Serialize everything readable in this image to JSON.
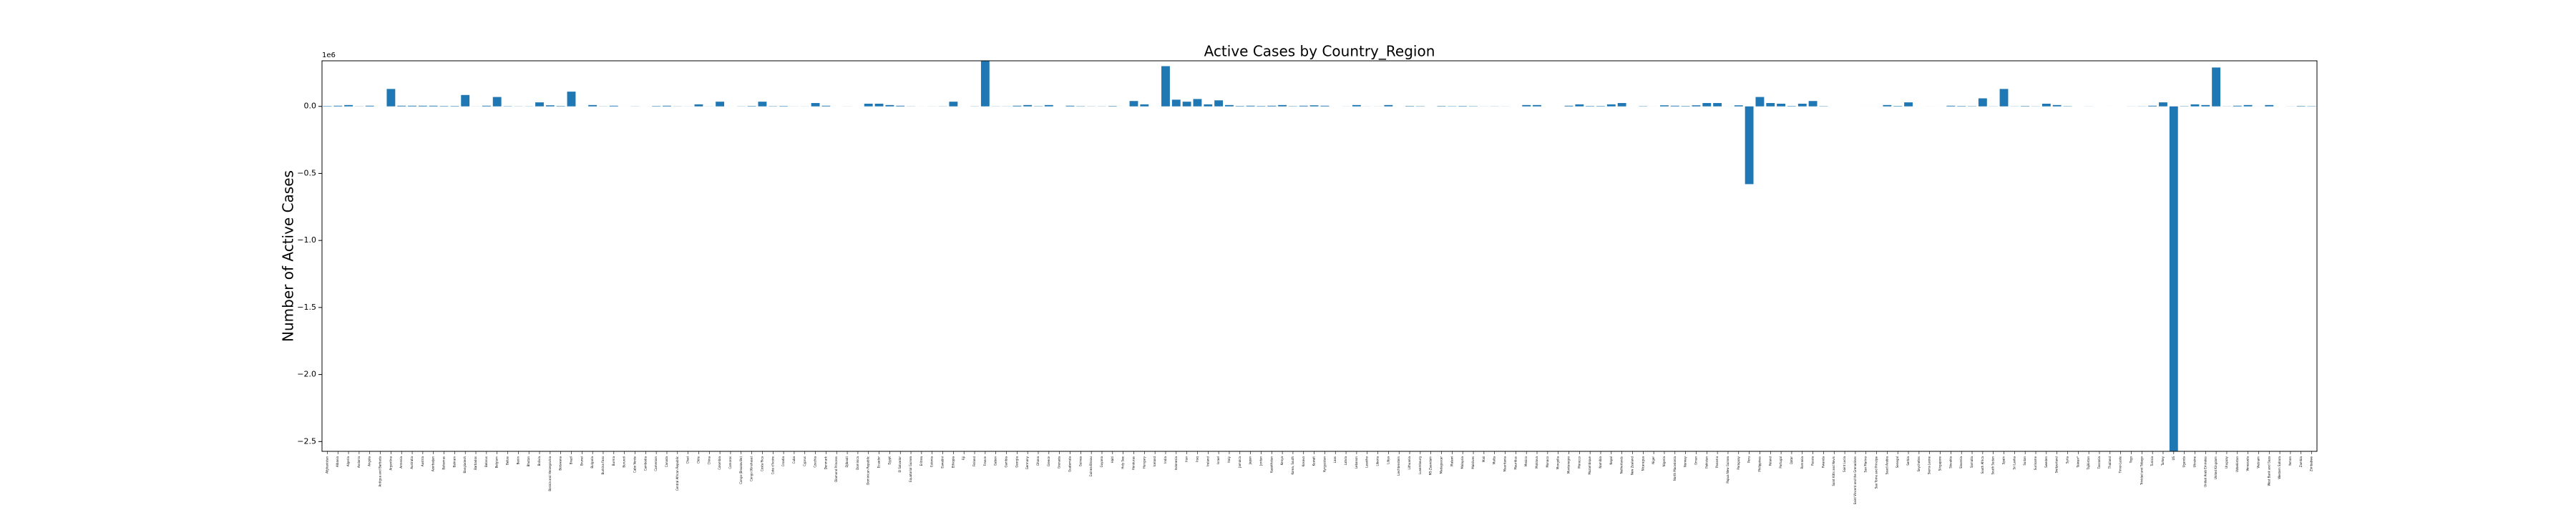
{
  "chart_data": {
    "type": "bar",
    "title": "Active Cases by Country_Region",
    "ylabel": "Number of Active Cases",
    "y_offset_label": "1e6",
    "color": "#1f77b4",
    "grid": false,
    "ylim": [
      -2573000,
      340000
    ],
    "yticks": [
      {
        "value": -2500000,
        "label": "−2.5"
      },
      {
        "value": -2000000,
        "label": "−2.0"
      },
      {
        "value": -1500000,
        "label": "−1.5"
      },
      {
        "value": -1000000,
        "label": "−1.0"
      },
      {
        "value": -500000,
        "label": "−0.5"
      },
      {
        "value": 0,
        "label": "0.0"
      }
    ],
    "categories": [
      "Afghanistan",
      "Albania",
      "Algeria",
      "Andorra",
      "Angola",
      "Antigua and Barbuda",
      "Argentina",
      "Armenia",
      "Australia",
      "Austria",
      "Azerbaijan",
      "Bahamas",
      "Bahrain",
      "Bangladesh",
      "Barbados",
      "Belarus",
      "Belgium",
      "Belize",
      "Benin",
      "Bhutan",
      "Bolivia",
      "Bosnia and Herzegovina",
      "Botswana",
      "Brazil",
      "Brunei",
      "Bulgaria",
      "Burkina Faso",
      "Burma",
      "Burundi",
      "Cabo Verde",
      "Cambodia",
      "Cameroon",
      "Canada",
      "Central African Republic",
      "Chad",
      "Chile",
      "China",
      "Colombia",
      "Comoros",
      "Congo (Brazzaville)",
      "Congo (Kinshasa)",
      "Costa Rica",
      "Cote d'Ivoire",
      "Croatia",
      "Cuba",
      "Cyprus",
      "Czechia",
      "Denmark",
      "Diamond Princess",
      "Djibouti",
      "Dominica",
      "Dominican Republic",
      "Ecuador",
      "Egypt",
      "El Salvador",
      "Equatorial Guinea",
      "Eritrea",
      "Estonia",
      "Eswatini",
      "Ethiopia",
      "Fiji",
      "Finland",
      "France",
      "Gabon",
      "Gambia",
      "Georgia",
      "Germany",
      "Ghana",
      "Greece",
      "Grenada",
      "Guatemala",
      "Guinea",
      "Guinea-Bissau",
      "Guyana",
      "Haiti",
      "Holy See",
      "Honduras",
      "Hungary",
      "Iceland",
      "India",
      "Indonesia",
      "Iran",
      "Iraq",
      "Ireland",
      "Israel",
      "Italy",
      "Jamaica",
      "Japan",
      "Jordan",
      "Kazakhstan",
      "Kenya",
      "Korea, South",
      "Kosovo",
      "Kuwait",
      "Kyrgyzstan",
      "Laos",
      "Latvia",
      "Lebanon",
      "Lesotho",
      "Liberia",
      "Libya",
      "Liechtenstein",
      "Lithuania",
      "Luxembourg",
      "MS Zaandam",
      "Madagascar",
      "Malawi",
      "Malaysia",
      "Maldives",
      "Mali",
      "Malta",
      "Mauritania",
      "Mauritius",
      "Mexico",
      "Moldova",
      "Monaco",
      "Mongolia",
      "Montenegro",
      "Morocco",
      "Mozambique",
      "Namibia",
      "Nepal",
      "Netherlands",
      "New Zealand",
      "Nicaragua",
      "Niger",
      "Nigeria",
      "North Macedonia",
      "Norway",
      "Oman",
      "Pakistan",
      "Panama",
      "Papua New Guinea",
      "Paraguay",
      "Peru",
      "Philippines",
      "Poland",
      "Portugal",
      "Qatar",
      "Romania",
      "Russia",
      "Rwanda",
      "Saint Kitts and Nevis",
      "Saint Lucia",
      "Saint Vincent and the Grenadines",
      "San Marino",
      "Sao Tome and Principe",
      "Saudi Arabia",
      "Senegal",
      "Serbia",
      "Seychelles",
      "Sierra Leone",
      "Singapore",
      "Slovakia",
      "Slovenia",
      "Somalia",
      "South Africa",
      "South Sudan",
      "Spain",
      "Sri Lanka",
      "Sudan",
      "Suriname",
      "Sweden",
      "Switzerland",
      "Syria",
      "Taiwan*",
      "Tajikistan",
      "Tanzania",
      "Thailand",
      "Timor-Leste",
      "Togo",
      "Trinidad and Tobago",
      "Tunisia",
      "Turkey",
      "US",
      "Uganda",
      "Ukraine",
      "United Arab Emirates",
      "United Kingdom",
      "Uruguay",
      "Uzbekistan",
      "Venezuela",
      "Vietnam",
      "West Bank and Gaza",
      "Western Sahara",
      "Yemen",
      "Zambia",
      "Zimbabwe"
    ],
    "values": [
      3000,
      5000,
      10000,
      1000,
      5000,
      100,
      130000,
      5000,
      5000,
      5000,
      5000,
      3000,
      3000,
      85000,
      500,
      5000,
      70000,
      2000,
      1000,
      1000,
      30000,
      8000,
      3000,
      110000,
      100,
      10000,
      1000,
      5000,
      100,
      1000,
      100,
      3000,
      5000,
      1000,
      500,
      15000,
      500,
      35000,
      100,
      1000,
      3000,
      35000,
      2000,
      3000,
      500,
      500,
      25000,
      5000,
      0,
      500,
      0,
      20000,
      20000,
      10000,
      5000,
      1000,
      200,
      500,
      1000,
      35000,
      0,
      1000,
      400000,
      1000,
      1000,
      5000,
      10000,
      2000,
      10000,
      0,
      5000,
      2000,
      1000,
      1000,
      3000,
      0,
      40000,
      15000,
      100,
      300000,
      50000,
      35000,
      55000,
      15000,
      45000,
      10000,
      3000,
      5000,
      3000,
      5000,
      10000,
      2000,
      5000,
      8000,
      5000,
      0,
      500,
      10000,
      500,
      500,
      10000,
      50,
      3000,
      2000,
      0,
      3000,
      2000,
      3000,
      2000,
      500,
      1000,
      500,
      50,
      10000,
      10000,
      50,
      50,
      5000,
      15000,
      3000,
      3000,
      15000,
      25000,
      50,
      2000,
      200,
      8000,
      5000,
      3000,
      8000,
      25000,
      25000,
      300,
      8000,
      -580000,
      70000,
      25000,
      20000,
      3000,
      20000,
      40000,
      2000,
      0,
      0,
      0,
      100,
      100,
      10000,
      3000,
      30000,
      50,
      200,
      100,
      5000,
      3000,
      2000,
      60000,
      1000,
      130000,
      1000,
      3000,
      1000,
      20000,
      10000,
      2000,
      50,
      500,
      0,
      100,
      0,
      500,
      1000,
      5000,
      30000,
      -2570000,
      2000,
      15000,
      10000,
      290000,
      1000,
      5000,
      10000,
      200,
      10000,
      0,
      500,
      3000,
      2000
    ]
  }
}
